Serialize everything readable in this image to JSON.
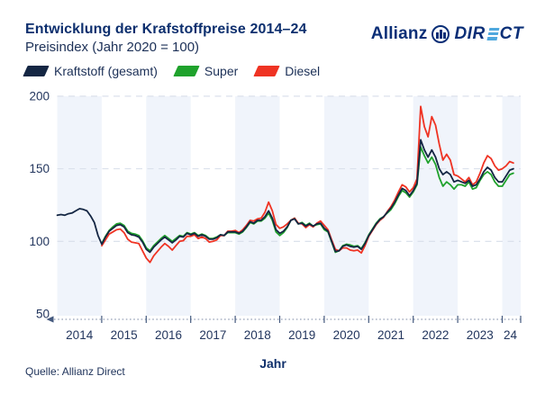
{
  "header": {
    "title": "Entwicklung der Krafstoffpreise 2014–24",
    "subtitle": "Preisindex (Jahr 2020 = 100)"
  },
  "logo": {
    "brand": "Allianz",
    "product": "DIRECT",
    "product_prefix": "DIR",
    "product_suffix": "CT",
    "eagle_icon": "allianz-eagle",
    "navy": "#0b2f77",
    "light_blue": "#4fa8de"
  },
  "legend": [
    {
      "label": "Kraftstoff (gesamt)",
      "color": "#142643"
    },
    {
      "label": "Super",
      "color": "#1fa22c"
    },
    {
      "label": "Diesel",
      "color": "#ef3323"
    }
  ],
  "footer": {
    "source": "Quelle: Allianz Direct"
  },
  "theme": {
    "band": "#f0f4fb",
    "grid": "#d8deea",
    "axis_line": "#7c8aa5",
    "tick": "#44597e",
    "tick_label": "#23365e"
  },
  "chart_data": {
    "type": "line",
    "title": "Entwicklung der Krafstoffpreise 2014–24",
    "subtitle": "Preisindex (Jahr 2020 = 100)",
    "xlabel": "Jahr",
    "ylabel": "Preisindex (Jahr 2020 = 100)",
    "x_start": "2014-01",
    "x_end": "2024-04",
    "x_frequency": "monthly",
    "x_tick_labels": [
      "2014",
      "2015",
      "2016",
      "2017",
      "2018",
      "2019",
      "2020",
      "2021",
      "2022",
      "2023",
      "24"
    ],
    "yticks": [
      50,
      100,
      150,
      200
    ],
    "grid_y": [
      100,
      150,
      200
    ],
    "ylim": [
      50,
      205
    ],
    "legend_position": "top",
    "shaded_years": [
      "2014",
      "2016",
      "2018",
      "2020",
      "2022",
      "2024"
    ],
    "series": [
      {
        "name": "Kraftstoff (gesamt)",
        "color": "#142643",
        "values": [
          118,
          118.5,
          118,
          119,
          119.5,
          121,
          122.5,
          122,
          121,
          117.5,
          113,
          104,
          98,
          103,
          107,
          109,
          111,
          111.5,
          110,
          106,
          104.5,
          104,
          103,
          99.5,
          94.5,
          92.5,
          96,
          98.5,
          101,
          103,
          101,
          99,
          101,
          103.5,
          103,
          105.5,
          104.5,
          105.5,
          103.5,
          104.5,
          103.5,
          101.5,
          101.5,
          102.5,
          104.5,
          104,
          106.5,
          106.5,
          106.5,
          105.5,
          107,
          110,
          113.5,
          112.5,
          114.5,
          114.5,
          117,
          121,
          116,
          108,
          105.5,
          107,
          110,
          114.5,
          115.5,
          112,
          112.5,
          110.5,
          112,
          110.5,
          112,
          112.5,
          109,
          107,
          100,
          93,
          93.5,
          96.5,
          97.5,
          96.5,
          96,
          96.5,
          94.5,
          98.5,
          104,
          108,
          112,
          115,
          117,
          120,
          123,
          127,
          132,
          136.5,
          135,
          131.5,
          135,
          140,
          170,
          163,
          158,
          163,
          158,
          150,
          146,
          148,
          146,
          141,
          142,
          141,
          140,
          142,
          138,
          139,
          143,
          148,
          151,
          149,
          144,
          141,
          141,
          145,
          149,
          150
        ]
      },
      {
        "name": "Super",
        "color": "#1fa22c",
        "values": [
          null,
          null,
          null,
          null,
          null,
          null,
          null,
          null,
          null,
          null,
          null,
          null,
          98.5,
          103.5,
          107.5,
          110,
          112,
          112.5,
          111,
          107,
          105.5,
          105,
          104,
          100.5,
          95.5,
          93.5,
          97,
          99.5,
          102,
          104,
          102,
          100,
          102,
          104,
          103.5,
          106,
          105,
          106,
          104,
          105,
          104,
          102,
          102,
          103,
          104.5,
          104,
          106,
          106,
          106,
          105,
          106.5,
          109.5,
          113,
          112,
          114,
          114,
          116,
          119.5,
          114.5,
          106.5,
          104,
          106,
          109.5,
          114.5,
          116,
          112,
          113,
          111,
          112.5,
          110.5,
          111.5,
          112,
          108,
          106.5,
          99.5,
          92.5,
          93.5,
          97,
          98,
          97.5,
          96.5,
          97,
          95,
          99,
          104.5,
          108.5,
          112.5,
          115.5,
          117,
          119.5,
          122,
          126,
          131,
          135,
          133.5,
          130.5,
          134,
          139,
          165,
          159,
          154,
          158,
          153,
          144,
          138,
          141,
          139,
          136,
          139,
          139,
          138,
          141,
          136,
          137,
          142,
          146,
          148,
          146,
          141,
          138,
          138,
          142,
          146,
          147
        ]
      },
      {
        "name": "Diesel",
        "color": "#ef3323",
        "values": [
          null,
          null,
          null,
          null,
          null,
          null,
          null,
          null,
          null,
          null,
          null,
          null,
          97,
          101,
          105,
          106.5,
          108,
          108.5,
          106,
          101.5,
          99.5,
          99,
          98.5,
          93.5,
          88.5,
          85.5,
          90,
          93,
          96,
          98.5,
          96.5,
          94,
          97,
          100,
          100.5,
          103.5,
          103.5,
          104.5,
          102,
          103,
          102,
          99.5,
          100,
          101,
          104,
          104,
          107,
          107,
          107.5,
          106,
          108,
          111,
          114.5,
          114,
          115.5,
          116,
          120,
          127,
          121,
          111.5,
          109,
          110,
          112,
          114.5,
          116,
          112.5,
          112,
          109.5,
          111.5,
          110,
          112.5,
          114,
          111,
          108,
          101,
          94.5,
          93.5,
          95.5,
          95.5,
          94,
          93.5,
          94,
          92,
          97,
          103.5,
          107.5,
          111.5,
          114.5,
          116.5,
          120.5,
          124,
          128.5,
          134,
          139,
          137.5,
          134,
          137,
          143,
          193,
          179,
          172,
          186,
          180,
          167,
          156,
          160,
          156,
          146,
          145,
          143,
          141,
          144,
          139,
          141,
          147,
          154,
          159,
          157,
          152,
          149,
          150,
          152,
          155,
          154
        ]
      }
    ]
  }
}
